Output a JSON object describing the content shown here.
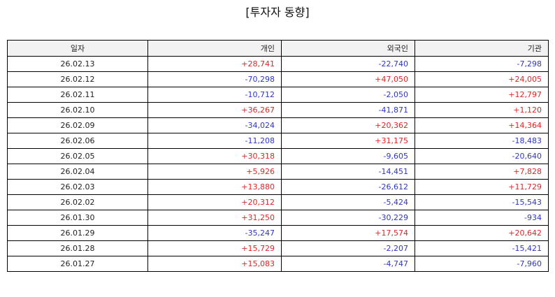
{
  "chart_data": {
    "type": "table",
    "title": "[투자자 동향]",
    "columns": [
      "일자",
      "개인",
      "외국인",
      "기관"
    ],
    "rows": [
      {
        "date": "26.02.13",
        "values": [
          "+28,741",
          "-22,740",
          "-7,298"
        ]
      },
      {
        "date": "26.02.12",
        "values": [
          "-70,298",
          "+47,050",
          "+24,005"
        ]
      },
      {
        "date": "26.02.11",
        "values": [
          "-10,712",
          "-2,050",
          "+12,797"
        ]
      },
      {
        "date": "26.02.10",
        "values": [
          "+36,267",
          "-41,871",
          "+1,120"
        ]
      },
      {
        "date": "26.02.09",
        "values": [
          "-34,024",
          "+20,362",
          "+14,364"
        ]
      },
      {
        "date": "26.02.06",
        "values": [
          "-11,208",
          "+31,175",
          "-18,483"
        ]
      },
      {
        "date": "26.02.05",
        "values": [
          "+30,318",
          "-9,605",
          "-20,640"
        ]
      },
      {
        "date": "26.02.04",
        "values": [
          "+5,926",
          "-14,451",
          "+7,828"
        ]
      },
      {
        "date": "26.02.03",
        "values": [
          "+13,880",
          "-26,612",
          "+11,729"
        ]
      },
      {
        "date": "26.02.02",
        "values": [
          "+20,312",
          "-5,424",
          "-15,543"
        ]
      },
      {
        "date": "26.01.30",
        "values": [
          "+31,250",
          "-30,229",
          "-934"
        ]
      },
      {
        "date": "26.01.29",
        "values": [
          "-35,247",
          "+17,574",
          "+20,642"
        ]
      },
      {
        "date": "26.01.28",
        "values": [
          "+15,729",
          "-2,207",
          "-15,421"
        ]
      },
      {
        "date": "26.01.27",
        "values": [
          "+15,083",
          "-4,747",
          "-7,960"
        ]
      }
    ]
  },
  "colors": {
    "positive": "#e02424",
    "negative": "#2f36c8",
    "header_bg": "#f2f2f2",
    "border": "#000000"
  }
}
